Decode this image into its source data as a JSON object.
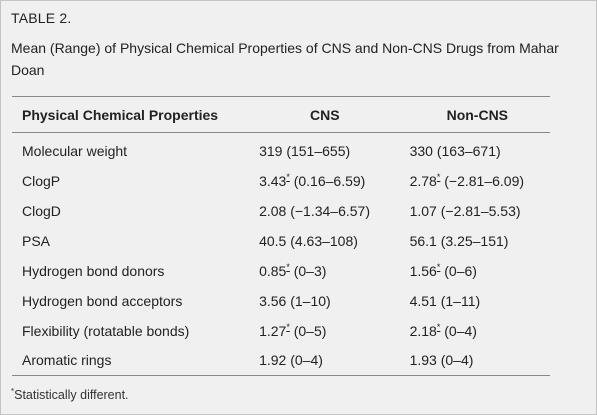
{
  "table_label": "TABLE 2.",
  "caption": "Mean (Range) of Physical Chemical Properties of CNS and Non-CNS Drugs from Mahar Doan",
  "headers": {
    "property": "Physical Chemical Properties",
    "cns": "CNS",
    "non_cns": "Non-CNS"
  },
  "rows": [
    {
      "property": "Molecular weight",
      "cns_mean": "319",
      "cns_mark": "",
      "cns_range": "(151–655)",
      "non_mean": "330",
      "non_mark": "",
      "non_range": "(163–671)"
    },
    {
      "property": "ClogP",
      "cns_mean": "3.43",
      "cns_mark": "*",
      "cns_range": "(0.16–6.59)",
      "non_mean": "2.78",
      "non_mark": "*",
      "non_range": "(−2.81–6.09)"
    },
    {
      "property": "ClogD",
      "cns_mean": "2.08",
      "cns_mark": "",
      "cns_range": "(−1.34–6.57)",
      "non_mean": "1.07",
      "non_mark": "",
      "non_range": "(−2.81–5.53)"
    },
    {
      "property": "PSA",
      "cns_mean": "40.5",
      "cns_mark": "",
      "cns_range": "(4.63–108)",
      "non_mean": "56.1",
      "non_mark": "",
      "non_range": "(3.25–151)"
    },
    {
      "property": "Hydrogen bond donors",
      "cns_mean": "0.85",
      "cns_mark": "*",
      "cns_range": "(0–3)",
      "non_mean": "1.56",
      "non_mark": "*",
      "non_range": "(0–6)"
    },
    {
      "property": "Hydrogen bond acceptors",
      "cns_mean": "3.56",
      "cns_mark": "",
      "cns_range": "(1–10)",
      "non_mean": "4.51",
      "non_mark": "",
      "non_range": "(1–11)"
    },
    {
      "property": "Flexibility (rotatable bonds)",
      "cns_mean": "1.27",
      "cns_mark": "*",
      "cns_range": "(0–5)",
      "non_mean": "2.18",
      "non_mark": "*",
      "non_range": "(0–4)"
    },
    {
      "property": "Aromatic rings",
      "cns_mean": "1.92",
      "cns_mark": "",
      "cns_range": "(0–4)",
      "non_mean": "1.93",
      "non_mark": "",
      "non_range": "(0–4)"
    }
  ],
  "footnote": {
    "mark": "*",
    "text": "Statistically different."
  }
}
